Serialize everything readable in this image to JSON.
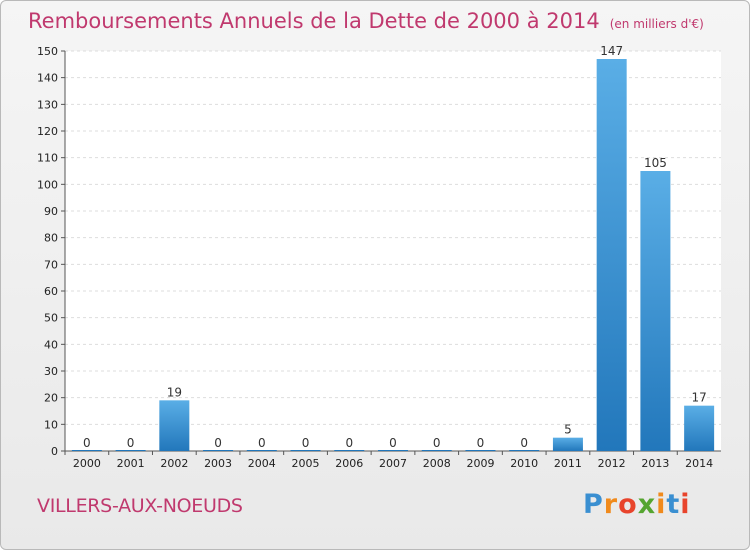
{
  "header": {
    "title": "Remboursements Annuels de la Dette de 2000 à 2014",
    "unit": "(en milliers d'€)"
  },
  "footer": {
    "commune": "VILLERS-AUX-NOEUDS",
    "logo": {
      "text": "Proxiti",
      "letters": [
        "P",
        "r",
        "o",
        "x",
        "i",
        "t",
        "i"
      ],
      "colors": [
        "#3a8fd1",
        "#f08a1c",
        "#e8442c",
        "#55a530",
        "#f08a1c",
        "#3a8fd1",
        "#e8442c"
      ]
    }
  },
  "colors": {
    "bar": "#3f95d6",
    "bar_light": "#5aaee6",
    "bar_dark": "#2277bb",
    "grid": "#dddddd",
    "axis": "#555555",
    "title": "#c0396e"
  },
  "chart_data": {
    "type": "bar",
    "categories": [
      "2000",
      "2001",
      "2002",
      "2003",
      "2004",
      "2005",
      "2006",
      "2007",
      "2008",
      "2009",
      "2010",
      "2011",
      "2012",
      "2013",
      "2014"
    ],
    "values": [
      0,
      0,
      19,
      0,
      0,
      0,
      0,
      0,
      0,
      0,
      0,
      5,
      147,
      105,
      17
    ],
    "title": "Remboursements Annuels de la Dette de 2000 à 2014",
    "xlabel": "",
    "ylabel": "",
    "ylim": [
      0,
      150
    ],
    "yticks": [
      0,
      10,
      20,
      30,
      40,
      50,
      60,
      70,
      80,
      90,
      100,
      110,
      120,
      130,
      140,
      150
    ],
    "grid": true,
    "legend": "none"
  }
}
